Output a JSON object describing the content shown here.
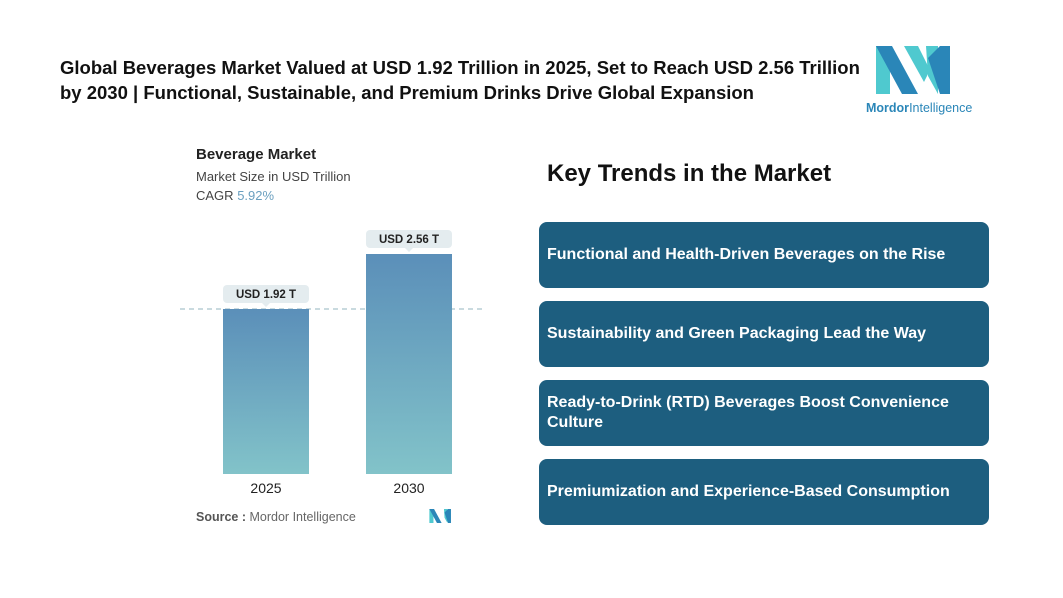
{
  "header": {
    "title": "Global Beverages Market Valued at USD 1.92 Trillion in 2025, Set to Reach USD 2.56 Trillion by 2030 | Functional, Sustainable, and Premium Drinks Drive Global Expansion",
    "logo": {
      "brand": "Mordor",
      "suffix": "Intelligence"
    }
  },
  "chart_data": {
    "type": "bar",
    "title": "Beverage Market",
    "subtitle": "Market Size in USD Trillion",
    "cagr_label": "CAGR",
    "cagr_value": "5.92%",
    "categories": [
      "2025",
      "2030"
    ],
    "values": [
      1.92,
      2.56
    ],
    "data_labels": [
      "USD 1.92 T",
      "USD 2.56 T"
    ],
    "ylim": [
      0,
      2.56
    ],
    "grid": false,
    "colors": {
      "bar_top": "#5b8fb9",
      "bar_bottom": "#82c3c9",
      "label_bg": "#e4ecef"
    }
  },
  "source": {
    "label": "Source :",
    "value": "Mordor Intelligence"
  },
  "trends": {
    "title": "Key Trends in the Market",
    "items": [
      "Functional and Health-Driven Beverages on the Rise",
      "Sustainability and Green Packaging Lead the Way",
      "Ready-to-Drink (RTD) Beverages Boost Convenience Culture",
      "Premiumization and Experience-Based Consumption"
    ],
    "card_color": "#1d5e7f"
  }
}
